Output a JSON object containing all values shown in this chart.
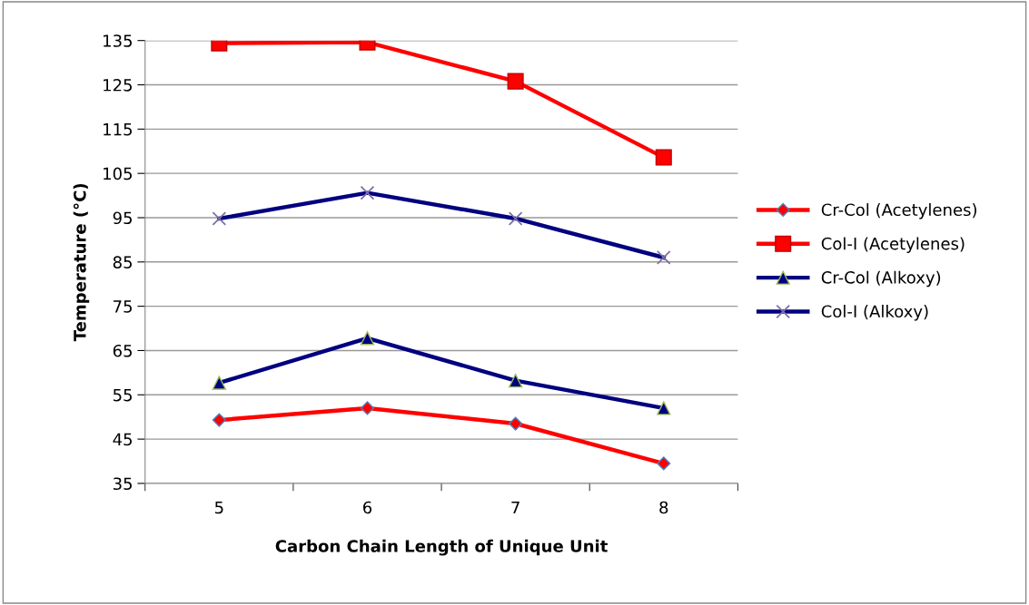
{
  "chart_data": {
    "type": "line",
    "xlabel": "Carbon Chain Length of Unique Unit",
    "ylabel": "Temperature (°C)",
    "categories": [
      "5",
      "6",
      "7",
      "8"
    ],
    "series": [
      {
        "name": "Cr-Col (Acetylenes)",
        "color": "#ff0000",
        "marker": "diamond",
        "values": [
          49.3,
          52.0,
          48.5,
          39.5
        ]
      },
      {
        "name": "Col-I (Acetylenes)",
        "color": "#ff0000",
        "marker": "square",
        "values": [
          134.4,
          134.6,
          125.8,
          108.6
        ]
      },
      {
        "name": "Cr-Col (Alkoxy)",
        "color": "#000080",
        "marker": "triangle",
        "values": [
          57.7,
          67.8,
          58.2,
          52.0
        ]
      },
      {
        "name": "Col-I (Alkoxy)",
        "color": "#000080",
        "marker": "cross",
        "values": [
          94.8,
          100.6,
          94.8,
          86.0
        ]
      }
    ],
    "ylim": [
      35,
      135
    ],
    "yticks": [
      35,
      45,
      55,
      65,
      75,
      85,
      95,
      105,
      115,
      125,
      135
    ],
    "grid": "y",
    "legend": "right",
    "line_style": "solid"
  }
}
